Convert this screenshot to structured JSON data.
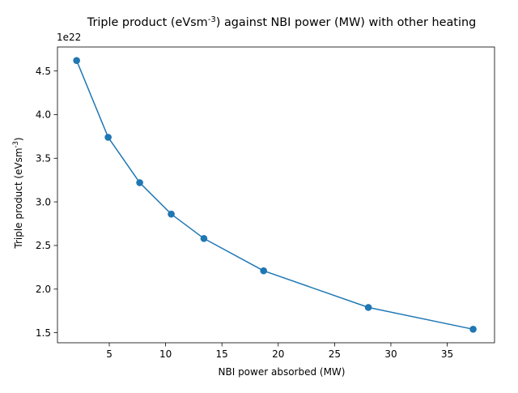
{
  "chart_data": {
    "type": "line",
    "title": "Triple product (eVsm$^-3$) against NBI power (MW) with other heating",
    "xlabel": "NBI power absorbed (MW)",
    "ylabel": "Triple product (eVsm$^-3$)",
    "y_offset_label": "1e22",
    "xlim": [
      0.4,
      39.2
    ],
    "ylim": [
      1.385,
      4.775
    ],
    "x_ticks": [
      5,
      10,
      15,
      20,
      25,
      30,
      35
    ],
    "y_ticks": [
      1.5,
      2.0,
      2.5,
      3.0,
      3.5,
      4.0,
      4.5
    ],
    "x_tick_labels": [
      "5",
      "10",
      "15",
      "20",
      "25",
      "30",
      "35"
    ],
    "y_tick_labels": [
      "1.5",
      "2.0",
      "2.5",
      "3.0",
      "3.5",
      "4.0",
      "4.5"
    ],
    "grid": false,
    "series": [
      {
        "color": "#1f77b4",
        "marker": "circle",
        "x": [
          2.1,
          4.9,
          7.7,
          10.5,
          13.4,
          18.7,
          28.0,
          37.3
        ],
        "y": [
          4.62,
          3.74,
          3.22,
          2.86,
          2.58,
          2.21,
          1.79,
          1.54
        ]
      }
    ]
  }
}
